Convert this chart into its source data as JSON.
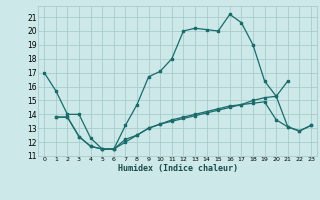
{
  "title": "",
  "xlabel": "Humidex (Indice chaleur)",
  "bg_color": "#cce8e8",
  "grid_color": "#aacccc",
  "line_color": "#1a6b6b",
  "xlim": [
    -0.5,
    23.5
  ],
  "ylim": [
    11,
    21.8
  ],
  "yticks": [
    11,
    12,
    13,
    14,
    15,
    16,
    17,
    18,
    19,
    20,
    21
  ],
  "xticks": [
    0,
    1,
    2,
    3,
    4,
    5,
    6,
    7,
    8,
    9,
    10,
    11,
    12,
    13,
    14,
    15,
    16,
    17,
    18,
    19,
    20,
    21,
    22,
    23
  ],
  "series1_x": [
    0,
    1,
    2,
    3,
    4,
    5,
    6,
    7,
    8,
    9,
    10,
    11,
    12,
    13,
    14,
    15,
    16,
    17,
    18,
    19,
    20,
    21
  ],
  "series1_y": [
    17.0,
    15.7,
    14.0,
    14.0,
    12.3,
    11.5,
    11.5,
    13.2,
    14.7,
    16.7,
    17.1,
    18.0,
    20.0,
    20.2,
    20.1,
    20.0,
    21.2,
    20.6,
    19.0,
    16.4,
    15.3,
    16.4
  ],
  "series2_x": [
    1,
    2,
    3,
    4,
    5,
    6,
    7,
    8,
    9,
    10,
    11,
    12,
    13,
    14,
    15,
    16,
    17,
    18,
    19,
    20,
    21,
    22,
    23
  ],
  "series2_y": [
    13.8,
    13.8,
    12.4,
    11.7,
    11.5,
    11.5,
    12.0,
    12.5,
    13.0,
    13.3,
    13.6,
    13.8,
    14.0,
    14.2,
    14.4,
    14.6,
    14.7,
    14.8,
    14.9,
    13.6,
    13.1,
    12.8,
    13.2
  ],
  "series3_x": [
    1,
    2,
    3,
    4,
    5,
    6,
    7,
    8,
    9,
    10,
    11,
    12,
    13,
    14,
    15,
    16,
    17,
    18,
    19,
    20,
    21,
    22,
    23
  ],
  "series3_y": [
    13.8,
    13.8,
    12.4,
    11.7,
    11.5,
    11.5,
    12.2,
    12.5,
    13.0,
    13.3,
    13.5,
    13.7,
    13.9,
    14.1,
    14.3,
    14.5,
    14.7,
    15.0,
    15.2,
    15.3,
    13.1,
    12.8,
    13.2
  ]
}
